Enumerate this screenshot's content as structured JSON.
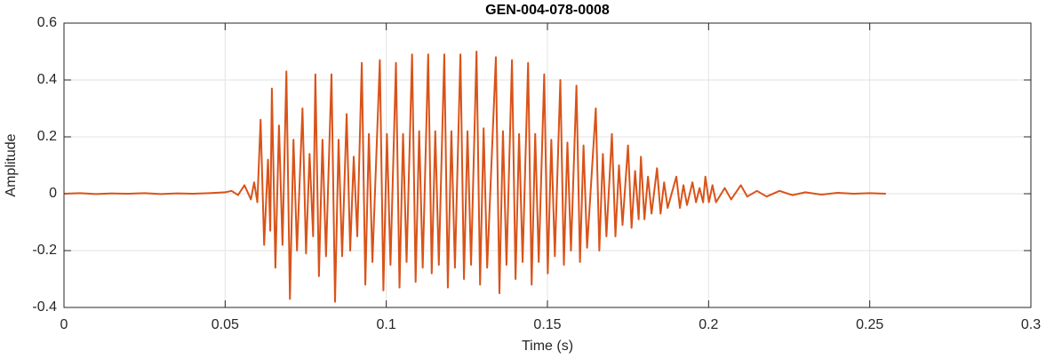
{
  "chart_data": {
    "type": "line",
    "title": "GEN-004-078-0008",
    "x_label": "Time (s)",
    "y_label": "Amplitude",
    "color": "#D95319",
    "grid": true,
    "xlim": [
      0,
      0.3
    ],
    "xticks": [
      0,
      0.05,
      0.1,
      0.15,
      0.2,
      0.25,
      0.3
    ],
    "ylim": [
      -0.4,
      0.6
    ],
    "yticks": [
      -0.4,
      -0.2,
      0,
      0.2,
      0.4,
      0.6
    ],
    "x": [
      0,
      0.005,
      0.01,
      0.015,
      0.02,
      0.025,
      0.03,
      0.035,
      0.04,
      0.045,
      0.05,
      0.052,
      0.054,
      0.056,
      0.058,
      0.059,
      0.06,
      0.061,
      0.0621,
      0.0633,
      0.064,
      0.0645,
      0.0656,
      0.0667,
      0.0678,
      0.069,
      0.0701,
      0.0712,
      0.0723,
      0.074,
      0.0751,
      0.0762,
      0.0773,
      0.078,
      0.0791,
      0.0802,
      0.0813,
      0.083,
      0.0841,
      0.0852,
      0.0863,
      0.0877,
      0.0888,
      0.0899,
      0.091,
      0.0924,
      0.0935,
      0.0946,
      0.0957,
      0.098,
      0.0991,
      0.1002,
      0.1013,
      0.103,
      0.1041,
      0.1052,
      0.1063,
      0.108,
      0.1091,
      0.1102,
      0.1113,
      0.113,
      0.1141,
      0.1152,
      0.1163,
      0.118,
      0.1191,
      0.1202,
      0.1213,
      0.123,
      0.1241,
      0.1252,
      0.1263,
      0.128,
      0.1291,
      0.1302,
      0.1313,
      0.134,
      0.1351,
      0.1362,
      0.1373,
      0.139,
      0.1401,
      0.1412,
      0.1423,
      0.144,
      0.1451,
      0.1462,
      0.1473,
      0.149,
      0.1501,
      0.1512,
      0.1523,
      0.154,
      0.1551,
      0.1562,
      0.1573,
      0.159,
      0.1601,
      0.1612,
      0.1623,
      0.165,
      0.1661,
      0.1672,
      0.1683,
      0.17,
      0.1711,
      0.1722,
      0.1733,
      0.175,
      0.1761,
      0.1772,
      0.1783,
      0.179,
      0.1801,
      0.1812,
      0.1823,
      0.184,
      0.1851,
      0.1862,
      0.1873,
      0.19,
      0.1911,
      0.1922,
      0.1933,
      0.195,
      0.1961,
      0.1972,
      0.1983,
      0.199,
      0.2001,
      0.2012,
      0.2023,
      0.205,
      0.207,
      0.21,
      0.212,
      0.215,
      0.218,
      0.222,
      0.226,
      0.23,
      0.235,
      0.24,
      0.245,
      0.25,
      0.255
    ],
    "values": [
      0,
      0.002,
      -0.001,
      0.001,
      0,
      0.002,
      -0.001,
      0.001,
      0,
      0.002,
      0.005,
      0.01,
      -0.005,
      0.03,
      -0.02,
      0.04,
      -0.03,
      0.26,
      -0.18,
      0.12,
      -0.13,
      0.37,
      -0.26,
      0.24,
      -0.18,
      0.43,
      -0.37,
      0.19,
      -0.2,
      0.3,
      -0.21,
      0.14,
      -0.15,
      0.42,
      -0.29,
      0.19,
      -0.22,
      0.42,
      -0.38,
      0.19,
      -0.22,
      0.28,
      -0.2,
      0.13,
      -0.15,
      0.46,
      -0.32,
      0.21,
      -0.24,
      0.47,
      -0.34,
      0.21,
      -0.25,
      0.46,
      -0.33,
      0.21,
      -0.24,
      0.49,
      -0.31,
      0.22,
      -0.26,
      0.49,
      -0.28,
      0.22,
      -0.25,
      0.49,
      -0.33,
      0.22,
      -0.26,
      0.49,
      -0.3,
      0.22,
      -0.25,
      0.5,
      -0.32,
      0.23,
      -0.26,
      0.48,
      -0.35,
      0.22,
      -0.25,
      0.47,
      -0.3,
      0.21,
      -0.24,
      0.46,
      -0.32,
      0.21,
      -0.24,
      0.42,
      -0.28,
      0.19,
      -0.22,
      0.4,
      -0.25,
      0.18,
      -0.2,
      0.38,
      -0.24,
      0.17,
      -0.19,
      0.3,
      -0.2,
      0.14,
      -0.15,
      0.21,
      -0.15,
      0.1,
      -0.11,
      0.17,
      -0.12,
      0.08,
      -0.09,
      0.13,
      -0.09,
      0.06,
      -0.07,
      0.09,
      -0.07,
      0.04,
      -0.05,
      0.06,
      -0.05,
      0.03,
      -0.04,
      0.04,
      -0.03,
      0.02,
      -0.03,
      0.06,
      -0.03,
      0.03,
      -0.03,
      0.02,
      -0.02,
      0.03,
      -0.01,
      0.01,
      -0.01,
      0.01,
      -0.005,
      0.005,
      -0.003,
      0.003,
      0,
      0.002,
      0
    ]
  }
}
